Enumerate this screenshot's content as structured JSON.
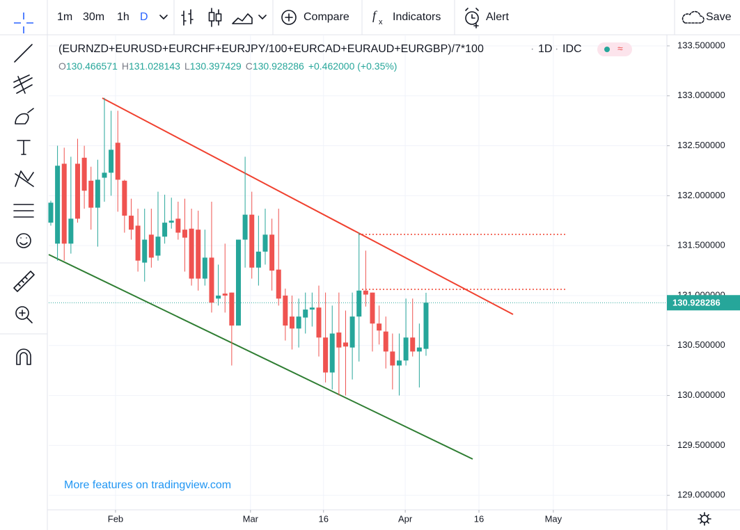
{
  "toolbar": {
    "intervals": [
      "1m",
      "30m",
      "1h",
      "D"
    ],
    "compare": "Compare",
    "indicators": "Indicators",
    "alert": "Alert",
    "save": "Save"
  },
  "chart_data": {
    "type": "candlestick",
    "title": "(EURNZD+EURUSD+EURCHF+EURJPY/100+EURCAD+EURAUD+EURGBP)/7*100",
    "interval": "1D",
    "source": "IDC",
    "ohlc_labels": [
      "O",
      "H",
      "L",
      "C"
    ],
    "change": "+0.462000 (+0.35%)",
    "watermark": "More features on tradingview.com",
    "colors": {
      "up": "#26a69a",
      "down": "#ef5350"
    },
    "grid": true,
    "open": [
      131.73,
      131.52,
      132.32,
      131.52,
      132.32,
      132.38,
      132.15,
      131.88,
      132.18,
      132.23,
      132.53,
      132.15,
      131.8,
      131.7,
      131.33,
      131.61,
      131.4,
      131.59,
      131.73,
      131.77,
      131.66,
      131.67,
      131.66,
      131.17,
      131.38,
      130.97,
      131.02,
      131.03,
      130.7,
      131.56,
      131.81,
      131.28,
      131.44,
      131.61,
      131.26,
      131.0,
      130.79,
      130.67,
      130.78,
      130.86,
      130.88,
      130.58,
      130.23,
      130.63,
      130.53,
      130.48,
      130.79,
      131.05,
      131.03,
      130.72,
      130.64,
      130.44,
      130.3,
      130.35,
      130.58,
      130.44,
      130.466571
    ],
    "high": [
      131.95,
      132.5,
      132.48,
      132.39,
      132.57,
      132.5,
      132.29,
      132.36,
      132.98,
      132.85,
      132.85,
      132.16,
      131.97,
      131.87,
      131.87,
      131.87,
      132.04,
      132.01,
      131.98,
      131.94,
      131.97,
      131.87,
      131.85,
      131.66,
      131.94,
      131.31,
      131.52,
      131.03,
      131.56,
      132.39,
      132.04,
      131.8,
      131.87,
      131.77,
      131.87,
      131.07,
      131.0,
      130.97,
      131.03,
      131.03,
      131.1,
      131.03,
      130.9,
      131.03,
      130.85,
      131.03,
      131.63,
      131.45,
      131.03,
      130.9,
      130.79,
      130.62,
      130.62,
      130.97,
      130.97,
      130.72,
      131.028143
    ],
    "low": [
      131.7,
      131.35,
      131.35,
      131.42,
      131.73,
      131.87,
      131.66,
      131.49,
      131.94,
      132.0,
      131.84,
      131.63,
      131.56,
      131.24,
      131.14,
      131.28,
      131.35,
      131.52,
      131.67,
      131.56,
      131.24,
      131.1,
      131.05,
      131.1,
      130.83,
      130.9,
      130.83,
      130.3,
      130.7,
      131.28,
      131.17,
      131.1,
      131.31,
      131.05,
      130.9,
      130.55,
      130.46,
      130.48,
      130.62,
      130.69,
      130.39,
      130.13,
      130.06,
      130.0,
      130.0,
      130.16,
      130.34,
      130.89,
      130.44,
      130.51,
      130.27,
      130.06,
      130.0,
      130.3,
      130.39,
      130.08,
      130.397429
    ],
    "close": [
      131.93,
      132.3,
      131.52,
      131.77,
      131.77,
      132.05,
      131.88,
      132.16,
      132.23,
      132.46,
      132.16,
      131.8,
      131.66,
      131.35,
      131.56,
      131.38,
      131.59,
      131.73,
      131.75,
      131.63,
      131.58,
      131.17,
      131.17,
      131.38,
      130.93,
      131.0,
      131.0,
      130.7,
      131.56,
      131.81,
      131.28,
      131.44,
      131.61,
      131.25,
      130.97,
      130.7,
      130.67,
      130.79,
      130.86,
      130.88,
      130.58,
      130.23,
      130.62,
      130.48,
      130.49,
      130.79,
      131.05,
      131.01,
      130.72,
      130.65,
      130.44,
      130.3,
      130.35,
      130.58,
      130.44,
      130.48,
      130.928286
    ],
    "xlim": [
      -0.31,
      91.95
    ],
    "xticks": [
      {
        "value": 9.66,
        "label": "Feb"
      },
      {
        "value": 29.8,
        "label": "Mar"
      },
      {
        "value": 40.7,
        "label": "16"
      },
      {
        "value": 52.9,
        "label": "Apr"
      },
      {
        "value": 63.9,
        "label": "16"
      },
      {
        "value": 75.0,
        "label": "May"
      }
    ],
    "ylim": [
      128.855,
      133.611
    ],
    "yticks": [
      {
        "value": 129,
        "label": "129.000000"
      },
      {
        "value": 129.5,
        "label": "129.500000"
      },
      {
        "value": 130,
        "label": "130.000000"
      },
      {
        "value": 130.5,
        "label": "130.500000"
      },
      {
        "value": 131,
        "label": "131.000000"
      },
      {
        "value": 131.5,
        "label": "131.500000"
      },
      {
        "value": 132,
        "label": "132.000000"
      },
      {
        "value": 132.5,
        "label": "132.500000"
      },
      {
        "value": 133,
        "label": "133.000000"
      },
      {
        "value": 133.5,
        "label": "133.500000"
      }
    ]
  }
}
